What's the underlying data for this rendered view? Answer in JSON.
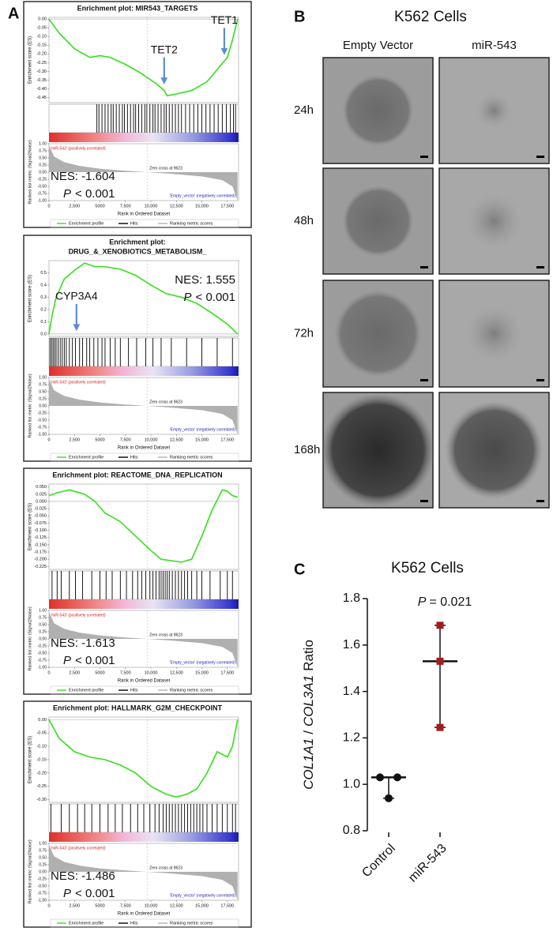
{
  "panel_labels": [
    "A",
    "B",
    "C"
  ],
  "microscopy": {
    "title": "K562 Cells",
    "columns": [
      "Empty Vector",
      "miR-543"
    ],
    "rows": [
      "24h",
      "48h",
      "72h",
      "168h"
    ]
  },
  "chart_data": [
    {
      "type": "gsea",
      "title": [
        "Enrichment plot: MIR543_TARGETS"
      ],
      "ylabel": "Enrichment score (ES)",
      "y2label": "Ranked list metric (Signal2Noise)",
      "xlabel": "Rank in Ordered Dataset",
      "x": [
        0,
        1000,
        2500,
        4000,
        5000,
        6000,
        7500,
        9000,
        10500,
        11300,
        11600,
        12500,
        14000,
        15500,
        16500,
        17500,
        18000,
        18500
      ],
      "values": [
        0,
        -0.08,
        -0.17,
        -0.22,
        -0.21,
        -0.22,
        -0.26,
        -0.31,
        -0.37,
        -0.41,
        -0.44,
        -0.43,
        -0.41,
        -0.36,
        -0.29,
        -0.22,
        -0.12,
        0
      ],
      "hits": [
        4700,
        4900,
        5200,
        5500,
        5800,
        6100,
        6300,
        6600,
        6900,
        7200,
        7400,
        7700,
        8000,
        8300,
        8500,
        8800,
        9100,
        9400,
        9600,
        9900,
        10200,
        10400,
        10700,
        11000,
        11300,
        11500,
        11800,
        12100,
        12400,
        12700,
        13000,
        13400,
        13800,
        14200,
        14600,
        15000,
        15400,
        15800,
        16200,
        16600,
        17000,
        17400,
        17800,
        18100,
        18300
      ],
      "metric_x": [
        0,
        500,
        1500,
        3000,
        5000,
        7500,
        9623,
        12000,
        15000,
        17000,
        18000,
        18500
      ],
      "metric_values": [
        0.95,
        0.55,
        0.35,
        0.22,
        0.12,
        0.05,
        0,
        -0.06,
        -0.15,
        -0.28,
        -0.5,
        -1.0
      ],
      "zero_cross": 9623,
      "xlim": [
        0,
        18600
      ],
      "xticks": [
        0,
        {
          "value": 2500,
          "label": "2,500"
        },
        5000,
        {
          "value": 7500,
          "label": "7,500"
        },
        {
          "value": 10000,
          "label": "10,000"
        },
        {
          "value": 12500,
          "label": "12,500"
        },
        {
          "value": 15000,
          "label": "15,000"
        },
        {
          "value": 17500,
          "label": "17,500"
        }
      ],
      "ylim": [
        -0.48,
        0.01
      ],
      "yticks": [
        {
          "value": 0,
          "label": "0.00"
        },
        -0.05,
        {
          "value": -0.1,
          "label": "-0.10"
        },
        -0.15,
        {
          "value": -0.2,
          "label": "-0.20"
        },
        -0.25,
        {
          "value": -0.3,
          "label": "-0.30"
        },
        -0.35,
        {
          "value": -0.4,
          "label": "-0.40"
        },
        -0.45
      ],
      "y2lim": [
        -1,
        1
      ],
      "y2ticks": [
        {
          "value": 1,
          "label": "1.00"
        },
        0.75,
        {
          "value": 0.5,
          "label": "0.50"
        },
        0.25,
        {
          "value": 0,
          "label": "0.00"
        },
        -0.25,
        {
          "value": -0.5,
          "label": "-0.50"
        },
        -0.75,
        {
          "value": -1,
          "label": "-1.00"
        }
      ],
      "annotations": {
        "positive": "'miR-543' (positively correlated)",
        "zero": "Zero cross at 9623",
        "negative": "'Empty_vector' (negatively correlated)"
      },
      "arrows": [
        {
          "label": "TET2",
          "x": 11300
        },
        {
          "label": "TET1",
          "x": 17200
        }
      ],
      "stats": {
        "nes": "NES: -1.604",
        "p_label": "P",
        "p_text": "< 0.001"
      },
      "stats_corner": "lower left",
      "legend": [
        "Enrichment profile",
        "Hits",
        "Ranking metric scores"
      ],
      "colors": {
        "es": "#33e01a",
        "hits": "#000000",
        "metric": "#b0b0b0"
      }
    },
    {
      "type": "gsea",
      "title": [
        "Enrichment plot:",
        "DRUG_&_XENOBIOTICS_METABOLISM_"
      ],
      "ylabel": "Enrichment score (ES)",
      "y2label": "Ranked list metric (Signal2Noise)",
      "xlabel": "Rank in Ordered Dataset",
      "x": [
        0,
        300,
        700,
        1500,
        2500,
        3500,
        4500,
        5500,
        7000,
        8500,
        10000,
        11500,
        13000,
        14500,
        16000,
        17500,
        18500
      ],
      "values": [
        0,
        0.15,
        0.3,
        0.45,
        0.52,
        0.58,
        0.55,
        0.55,
        0.53,
        0.48,
        0.4,
        0.33,
        0.3,
        0.25,
        0.17,
        0.08,
        0
      ],
      "hits": [
        100,
        250,
        400,
        550,
        700,
        900,
        1100,
        1300,
        1500,
        1700,
        2000,
        2300,
        2600,
        3000,
        3300,
        3700,
        4000,
        4400,
        4800,
        5200,
        5500,
        6000,
        6500,
        7000,
        7800,
        8600,
        9500,
        10200,
        11000,
        12000,
        13500,
        15000,
        16500,
        18000
      ],
      "metric_x": [
        0,
        500,
        1500,
        3000,
        5000,
        7500,
        9623,
        12000,
        15000,
        17000,
        18000,
        18500
      ],
      "metric_values": [
        0.95,
        0.55,
        0.35,
        0.22,
        0.12,
        0.05,
        0,
        -0.06,
        -0.15,
        -0.28,
        -0.5,
        -1.0
      ],
      "zero_cross": 9623,
      "xlim": [
        0,
        18600
      ],
      "xticks": [
        0,
        {
          "value": 2500,
          "label": "2,500"
        },
        5000,
        {
          "value": 7500,
          "label": "7,500"
        },
        {
          "value": 10000,
          "label": "10,000"
        },
        {
          "value": 12500,
          "label": "12,500"
        },
        {
          "value": 15000,
          "label": "15,000"
        },
        {
          "value": 17500,
          "label": "17,500"
        }
      ],
      "ylim": [
        -0.02,
        0.6
      ],
      "yticks": [
        {
          "value": 0.5,
          "label": "0.5"
        },
        0.4,
        0.3,
        0.2,
        0.1,
        {
          "value": 0,
          "label": "0.0"
        }
      ],
      "y2lim": [
        -1,
        1
      ],
      "y2ticks": [
        {
          "value": 1,
          "label": "1.00"
        },
        0.75,
        {
          "value": 0.5,
          "label": "0.50"
        },
        0.25,
        {
          "value": 0,
          "label": "0.00"
        },
        -0.25,
        {
          "value": -0.5,
          "label": "-0.50"
        },
        -0.75,
        {
          "value": -1,
          "label": "-1.00"
        }
      ],
      "annotations": {
        "positive": "'miR-543' (positively correlated)",
        "zero": "Zero cross at 9623",
        "negative": "'Empty_vector' (negatively correlated)"
      },
      "arrows": [
        {
          "label": "CYP3A4",
          "x": 2700
        }
      ],
      "stats": {
        "nes": "NES: 1.555",
        "p_label": "P",
        "p_text": "< 0.001"
      },
      "stats_corner": "upper right",
      "legend": [
        "Enrichment profile",
        "Hits",
        "Ranking metric scores"
      ],
      "colors": {
        "es": "#33e01a",
        "hits": "#000000",
        "metric": "#b0b0b0"
      }
    },
    {
      "type": "gsea",
      "title": [
        "Enrichment plot: REACTOME_DNA_REPLICATION"
      ],
      "ylabel": "Enrichment score (ES)",
      "y2label": "Ranked list metric (Signal2Noise)",
      "xlabel": "Rank in Ordered Dataset",
      "x": [
        0,
        800,
        2000,
        3500,
        4500,
        5500,
        7000,
        8500,
        10000,
        11000,
        12000,
        13000,
        14000,
        15000,
        16000,
        17000,
        17500,
        18000,
        18500
      ],
      "values": [
        0.02,
        0.03,
        0.04,
        0.025,
        0,
        -0.04,
        -0.07,
        -0.12,
        -0.17,
        -0.2,
        -0.205,
        -0.21,
        -0.2,
        -0.12,
        -0.03,
        0.04,
        0.035,
        0.02,
        0.015
      ],
      "hits": [
        300,
        800,
        1200,
        2000,
        2600,
        3300,
        4200,
        5000,
        5600,
        6200,
        7000,
        7600,
        8200,
        8700,
        9100,
        9500,
        9900,
        10200,
        10500,
        10800,
        11000,
        11200,
        11400,
        11600,
        11800,
        12100,
        12400,
        12700,
        13000,
        13300,
        13600,
        14000,
        14500,
        15000,
        15800,
        16800,
        17500,
        18000
      ],
      "metric_x": [
        0,
        500,
        1500,
        3000,
        5000,
        7500,
        9623,
        12000,
        15000,
        17000,
        18000,
        18500
      ],
      "metric_values": [
        0.95,
        0.55,
        0.35,
        0.22,
        0.12,
        0.05,
        0,
        -0.06,
        -0.15,
        -0.28,
        -0.5,
        -1.0
      ],
      "zero_cross": 9623,
      "xlim": [
        0,
        18600
      ],
      "xticks": [
        0,
        {
          "value": 2500,
          "label": "2,500"
        },
        5000,
        {
          "value": 7500,
          "label": "7,500"
        },
        {
          "value": 10000,
          "label": "10,000"
        },
        {
          "value": 12500,
          "label": "12,500"
        },
        {
          "value": 15000,
          "label": "15,000"
        },
        {
          "value": 17500,
          "label": "17,500"
        }
      ],
      "ylim": [
        -0.235,
        0.06
      ],
      "yticks": [
        {
          "value": 0.05,
          "label": "0.050"
        },
        0.025,
        {
          "value": 0,
          "label": "0.000"
        },
        -0.025,
        {
          "value": -0.05,
          "label": "-0.050"
        },
        -0.075,
        {
          "value": -0.1,
          "label": "-0.100"
        },
        -0.125,
        {
          "value": -0.15,
          "label": "-0.150"
        },
        -0.175,
        {
          "value": -0.2,
          "label": "-0.200"
        },
        -0.225
      ],
      "y2lim": [
        -1,
        1
      ],
      "y2ticks": [
        {
          "value": 1,
          "label": "1.00"
        },
        0.75,
        {
          "value": 0.5,
          "label": "0.50"
        },
        0.25,
        {
          "value": 0,
          "label": "0.00"
        },
        -0.25,
        {
          "value": -0.5,
          "label": "-0.50"
        },
        -0.75,
        {
          "value": -1,
          "label": "-1.00"
        }
      ],
      "annotations": {
        "positive": "'miR-543' (positively correlated)",
        "zero": "Zero cross at 9623",
        "negative": "'Empty_vector' (negatively correlated)"
      },
      "arrows": [],
      "stats": {
        "nes": "NES: -1.613",
        "p_label": "P",
        "p_text": "< 0.001"
      },
      "stats_corner": "lower left",
      "legend": [
        "Enrichment profile",
        "Hits",
        "Ranking metric scores"
      ],
      "colors": {
        "es": "#33e01a",
        "hits": "#000000",
        "metric": "#b0b0b0"
      }
    },
    {
      "type": "gsea",
      "title": [
        "Enrichment plot: HALLMARK_G2M_CHECKPOINT"
      ],
      "ylabel": "Enrichment score (ES)",
      "y2label": "Ranked list metric (Signal2Noise)",
      "xlabel": "Rank in Ordered Dataset",
      "x": [
        0,
        1000,
        2500,
        4000,
        5500,
        7000,
        8500,
        10000,
        11500,
        12500,
        13500,
        14500,
        15500,
        16500,
        17500,
        18000,
        18300,
        18500
      ],
      "values": [
        0,
        -0.07,
        -0.12,
        -0.14,
        -0.15,
        -0.17,
        -0.2,
        -0.25,
        -0.28,
        -0.29,
        -0.28,
        -0.26,
        -0.2,
        -0.12,
        -0.14,
        -0.1,
        -0.04,
        0
      ],
      "hits": [
        200,
        1200,
        2000,
        2800,
        3500,
        4200,
        5000,
        5800,
        6500,
        7200,
        8000,
        8700,
        9300,
        9900,
        10400,
        10800,
        11200,
        11500,
        11800,
        12100,
        12400,
        12700,
        13000,
        13300,
        13600,
        13900,
        14200,
        14500,
        14800,
        15100,
        15500,
        16000,
        16500,
        17000,
        17500,
        18000,
        18300
      ],
      "metric_x": [
        0,
        500,
        1500,
        3000,
        5000,
        7500,
        9623,
        12000,
        15000,
        17000,
        18000,
        18500
      ],
      "metric_values": [
        0.95,
        0.55,
        0.35,
        0.22,
        0.12,
        0.05,
        0,
        -0.06,
        -0.15,
        -0.28,
        -0.5,
        -1.0
      ],
      "zero_cross": 9623,
      "xlim": [
        0,
        18600
      ],
      "xticks": [
        0,
        {
          "value": 2500,
          "label": "2,500"
        },
        5000,
        {
          "value": 7500,
          "label": "7,500"
        },
        {
          "value": 10000,
          "label": "10,000"
        },
        {
          "value": 12500,
          "label": "12,500"
        },
        {
          "value": 15000,
          "label": "15,000"
        },
        {
          "value": 17500,
          "label": "17,500"
        }
      ],
      "ylim": [
        -0.31,
        0.01
      ],
      "yticks": [
        {
          "value": 0,
          "label": "0.00"
        },
        -0.05,
        {
          "value": -0.1,
          "label": "-0.10"
        },
        -0.15,
        {
          "value": -0.2,
          "label": "-0.20"
        },
        -0.25,
        {
          "value": -0.3,
          "label": "-0.30"
        }
      ],
      "y2lim": [
        -1,
        1
      ],
      "y2ticks": [
        {
          "value": 1,
          "label": "1.00"
        },
        0.75,
        {
          "value": 0.5,
          "label": "0.50"
        },
        0.25,
        {
          "value": 0,
          "label": "0.00"
        },
        -0.25,
        {
          "value": -0.5,
          "label": "-0.50"
        },
        -0.75,
        {
          "value": -1,
          "label": "-1.00"
        }
      ],
      "annotations": {
        "positive": "'miR-543' (positively correlated)",
        "zero": "Zero cross at 9623",
        "negative": "'Empty_vector' (negatively correlated)"
      },
      "arrows": [],
      "stats": {
        "nes": "NES: -1.486",
        "p_label": "P",
        "p_text": "< 0.001"
      },
      "stats_corner": "lower left",
      "legend": [
        "Enrichment profile",
        "Hits",
        "Ranking metric scores"
      ],
      "colors": {
        "es": "#33e01a",
        "hits": "#000000",
        "metric": "#b0b0b0"
      }
    },
    {
      "type": "dotplot",
      "title": "K562 Cells",
      "ylabel": {
        "gene1": "COL1A1",
        "sep": "/",
        "gene2": "COL3A1",
        "suffix": "Ratio"
      },
      "categories": [
        "Control",
        "miR-543"
      ],
      "points": [
        [
          1.03,
          1.03,
          0.94
        ],
        [
          1.685,
          1.53,
          1.245
        ]
      ],
      "medians": [
        1.03,
        1.53
      ],
      "colors": [
        "#111111",
        "#a41c1c"
      ],
      "markers": [
        "circle",
        "square"
      ],
      "ylim": [
        0.8,
        1.8
      ],
      "yticks": [
        0.8,
        {
          "value": 1,
          "label": "1.0"
        },
        1.2,
        1.4,
        1.6,
        1.8
      ],
      "annotation": {
        "p_label": "P",
        "p_text": "= 0.021"
      }
    }
  ]
}
